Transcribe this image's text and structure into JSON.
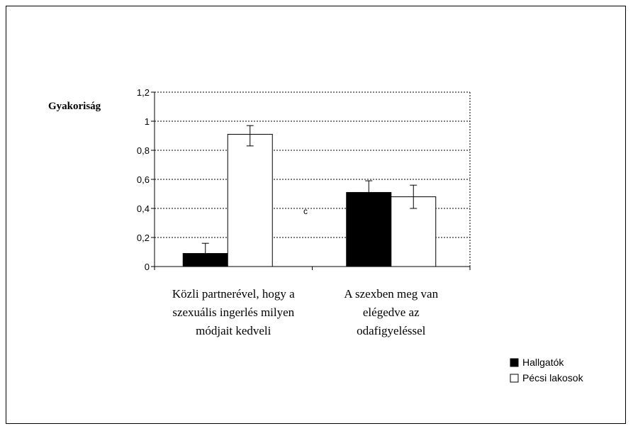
{
  "chart_data": {
    "type": "bar",
    "ylabel": "Gyakoriság",
    "ylim": [
      0,
      1.2
    ],
    "ytick_labels": [
      "0",
      "0,2",
      "0,4",
      "0,6",
      "0,8",
      "1",
      "1,2"
    ],
    "grid": true,
    "categories": [
      [
        "Közli partnerével, hogy a",
        "szexuális ingerlés milyen",
        "módjait kedveli"
      ],
      [
        "A szexben meg van",
        "elégedve az",
        "odafigyeléssel"
      ]
    ],
    "series": [
      {
        "name": "Hallgatók",
        "color": "#000000",
        "values": [
          0.09,
          0.51
        ],
        "error_up": [
          0.07,
          0.08
        ],
        "error_down": [
          0.09,
          0.0
        ]
      },
      {
        "name": "Pécsi lakosok",
        "color": "#ffffff",
        "values": [
          0.91,
          0.48
        ],
        "error_up": [
          0.06,
          0.08
        ],
        "error_down": [
          0.08,
          0.08
        ]
      }
    ],
    "annotations": [
      "c"
    ],
    "legend_position": "bottom-right"
  }
}
